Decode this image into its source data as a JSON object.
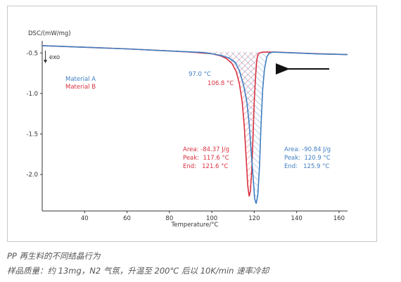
{
  "chart_data": {
    "type": "line",
    "ylabel": "DSC/(mW/mg)",
    "xlabel": "Temperature/°C",
    "exo_label": "exo",
    "xlim": [
      20,
      164
    ],
    "ylim": [
      -2.45,
      -0.35
    ],
    "x_ticks": [
      40,
      60,
      80,
      100,
      120,
      140,
      160
    ],
    "y_ticks": [
      -0.5,
      -1.0,
      -1.5,
      -2.0
    ],
    "grid": false,
    "legend_position": "top-left",
    "colors": {
      "material_a": "#3f7ec1",
      "material_b": "#d9303f",
      "arrow": "#111111"
    },
    "series": [
      {
        "name": "Material A",
        "color": "#3f7ec1",
        "points": [
          [
            20,
            -0.41
          ],
          [
            40,
            -0.43
          ],
          [
            60,
            -0.45
          ],
          [
            80,
            -0.475
          ],
          [
            90,
            -0.487
          ],
          [
            96,
            -0.495
          ],
          [
            100,
            -0.51
          ],
          [
            104,
            -0.53
          ],
          [
            108,
            -0.56
          ],
          [
            111,
            -0.62
          ],
          [
            113,
            -0.72
          ],
          [
            115,
            -0.9
          ],
          [
            116.5,
            -1.1
          ],
          [
            117.5,
            -1.35
          ],
          [
            118.5,
            -1.7
          ],
          [
            119.5,
            -2.05
          ],
          [
            120.2,
            -2.3
          ],
          [
            120.9,
            -2.36
          ],
          [
            121.7,
            -2.25
          ],
          [
            122.5,
            -1.9
          ],
          [
            123.2,
            -1.4
          ],
          [
            124,
            -0.95
          ],
          [
            124.8,
            -0.7
          ],
          [
            125.9,
            -0.55
          ],
          [
            127,
            -0.505
          ],
          [
            128.5,
            -0.49
          ],
          [
            140,
            -0.5
          ],
          [
            150,
            -0.512
          ],
          [
            164,
            -0.52
          ]
        ]
      },
      {
        "name": "Material B",
        "color": "#d9303f",
        "points": [
          [
            20,
            -0.41
          ],
          [
            40,
            -0.43
          ],
          [
            60,
            -0.45
          ],
          [
            80,
            -0.475
          ],
          [
            90,
            -0.49
          ],
          [
            100,
            -0.51
          ],
          [
            104,
            -0.535
          ],
          [
            107,
            -0.57
          ],
          [
            109.5,
            -0.63
          ],
          [
            111.5,
            -0.73
          ],
          [
            113,
            -0.88
          ],
          [
            114.3,
            -1.1
          ],
          [
            115.3,
            -1.4
          ],
          [
            116.2,
            -1.8
          ],
          [
            117,
            -2.15
          ],
          [
            117.6,
            -2.27
          ],
          [
            118.2,
            -2.2
          ],
          [
            118.8,
            -1.95
          ],
          [
            119.4,
            -1.55
          ],
          [
            120,
            -1.1
          ],
          [
            120.6,
            -0.8
          ],
          [
            121.1,
            -0.62
          ],
          [
            121.6,
            -0.53
          ],
          [
            122.5,
            -0.5
          ],
          [
            124,
            -0.49
          ],
          [
            130,
            -0.49
          ],
          [
            140,
            -0.5
          ],
          [
            150,
            -0.51
          ],
          [
            164,
            -0.52
          ]
        ]
      }
    ],
    "annotations": {
      "onset_a": {
        "text": "97.0 °C",
        "x": 97.0,
        "y": -0.5
      },
      "onset_b": {
        "text": "106.8 °C",
        "x": 106.8,
        "y": -0.56
      },
      "info_b": [
        "Area: -84.37 J/g",
        "Peak:  117.6 °C",
        "End:   121.6 °C"
      ],
      "info_a": [
        "Area: -90.84 J/g",
        "Peak:  120.9 °C",
        "End:   125.9 °C"
      ]
    }
  },
  "caption": {
    "line1": "PP 再生料的不同结晶行为",
    "line2": "样品质量：约 13mg，N2 气氛，升温至 200℃ 后以 10K/min 速率冷却"
  }
}
